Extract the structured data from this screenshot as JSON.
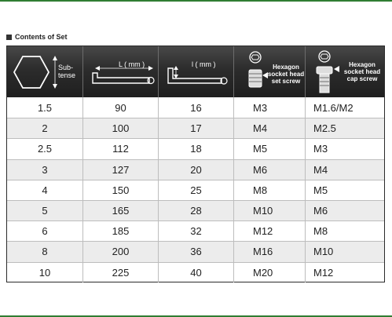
{
  "section_title": "Contents of Set",
  "header": {
    "subtense_line1": "Sub-",
    "subtense_line2": "tense",
    "L_label": "L ( mm )",
    "l_label": "l ( mm )",
    "set_screw_line1": "Hexagon",
    "set_screw_line2": "socket head",
    "set_screw_line3": "set screw",
    "cap_screw_line1": "Hexagon",
    "cap_screw_line2": "socket head",
    "cap_screw_line3": "cap screw"
  },
  "rows": [
    {
      "subtense": "1.5",
      "L": "90",
      "l": "16",
      "set_screw": "M3",
      "cap_screw": "M1.6/M2"
    },
    {
      "subtense": "2",
      "L": "100",
      "l": "17",
      "set_screw": "M4",
      "cap_screw": "M2.5"
    },
    {
      "subtense": "2.5",
      "L": "112",
      "l": "18",
      "set_screw": "M5",
      "cap_screw": "M3"
    },
    {
      "subtense": "3",
      "L": "127",
      "l": "20",
      "set_screw": "M6",
      "cap_screw": "M4"
    },
    {
      "subtense": "4",
      "L": "150",
      "l": "25",
      "set_screw": "M8",
      "cap_screw": "M5"
    },
    {
      "subtense": "5",
      "L": "165",
      "l": "28",
      "set_screw": "M10",
      "cap_screw": "M6"
    },
    {
      "subtense": "6",
      "L": "185",
      "l": "32",
      "set_screw": "M12",
      "cap_screw": "M8"
    },
    {
      "subtense": "8",
      "L": "200",
      "l": "36",
      "set_screw": "M16",
      "cap_screw": "M10"
    },
    {
      "subtense": "10",
      "L": "225",
      "l": "40",
      "set_screw": "M20",
      "cap_screw": "M12"
    }
  ]
}
